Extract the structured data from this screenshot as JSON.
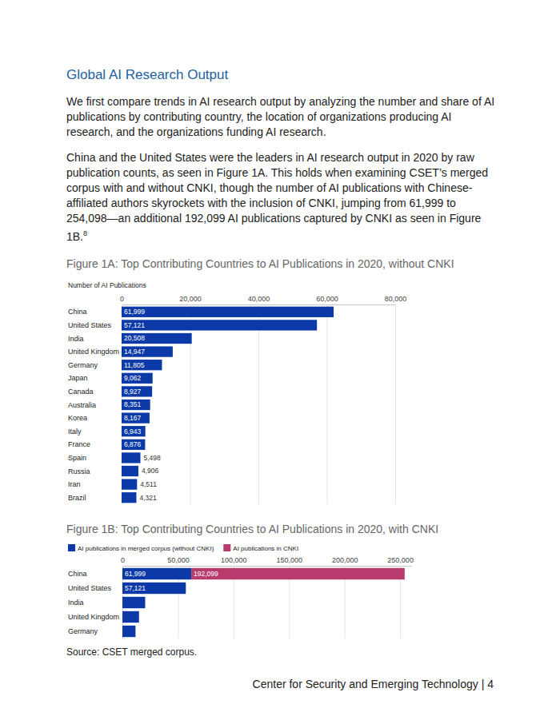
{
  "heading": "Global AI Research Output",
  "paragraph_1": "We first compare trends in AI research output by analyzing the number and share of AI publications by contributing country, the location of organizations producing AI research, and the organizations funding AI research.",
  "paragraph_2": "China and the United States were the leaders in AI research output in 2020 by raw publication counts, as seen in Figure 1A. This holds when examining CSET’s merged corpus with and without CNKI, though the number of AI publications with Chinese-affiliated authors skyrockets with the inclusion of CNKI, jumping from 61,999 to 254,098—an additional 192,099 AI publications captured by CNKI as seen in Figure 1B.",
  "footnote_ref": "8",
  "chart_data": [
    {
      "type": "bar",
      "title": "Figure 1A: Top Contributing Countries to AI Publications in 2020, without CNKI",
      "xlabel": "Number of AI Publications",
      "orientation": "horizontal",
      "categories": [
        "China",
        "United States",
        "India",
        "United Kingdom",
        "Germany",
        "Japan",
        "Canada",
        "Australia",
        "Korea",
        "Italy",
        "France",
        "Spain",
        "Russia",
        "Iran",
        "Brazil"
      ],
      "values": [
        61999,
        57121,
        20508,
        14947,
        11805,
        9062,
        8927,
        8351,
        8167,
        6943,
        6876,
        5498,
        4906,
        4511,
        4321
      ],
      "value_labels": [
        "61,999",
        "57,121",
        "20,508",
        "14,947",
        "11,805",
        "9,062",
        "8,927",
        "8,351",
        "8,167",
        "6,943",
        "6,876",
        "5,498",
        "4,906",
        "4,511",
        "4,321"
      ],
      "color": "#0b3aa8",
      "data_labels": true,
      "grid": true,
      "xlim": [
        0,
        80000
      ],
      "xticks": [
        0,
        {
          "value": 20000,
          "label": "20,000"
        },
        {
          "value": 40000,
          "label": "40,000"
        },
        {
          "value": 60000,
          "label": "60,000"
        },
        {
          "value": 80000,
          "label": "80,000"
        }
      ]
    },
    {
      "type": "bar",
      "title": "Figure 1B: Top Contributing Countries to AI Publications in 2020, with CNKI",
      "orientation": "horizontal",
      "stacked": true,
      "legend": "top-left",
      "categories": [
        "China",
        "United States",
        "India",
        "United Kingdom",
        "Germany"
      ],
      "series": [
        {
          "name": "AI publications in merged corpus (without CNKI)",
          "color": "#0b3aa8",
          "values": [
            61999,
            57121,
            20508,
            14947,
            11805
          ],
          "value_labels": [
            "61,999",
            "57,121",
            null,
            null,
            null
          ]
        },
        {
          "name": "AI publications in CNKI",
          "color": "#b83b6e",
          "values": [
            192099,
            null,
            null,
            null,
            null
          ],
          "value_labels": [
            "192,099",
            null,
            null,
            null,
            null
          ]
        }
      ],
      "data_labels": true,
      "grid": true,
      "xlim": [
        0,
        260000
      ],
      "xticks": [
        0,
        {
          "value": 50000,
          "label": "50,000"
        },
        {
          "value": 100000,
          "label": "100,000"
        },
        {
          "value": 150000,
          "label": "150,000"
        },
        {
          "value": 200000,
          "label": "200,000"
        },
        {
          "value": 250000,
          "label": "250,000"
        }
      ]
    }
  ],
  "source": "Source: CSET merged corpus.",
  "footer": "Center for Security and Emerging Technology | 4"
}
